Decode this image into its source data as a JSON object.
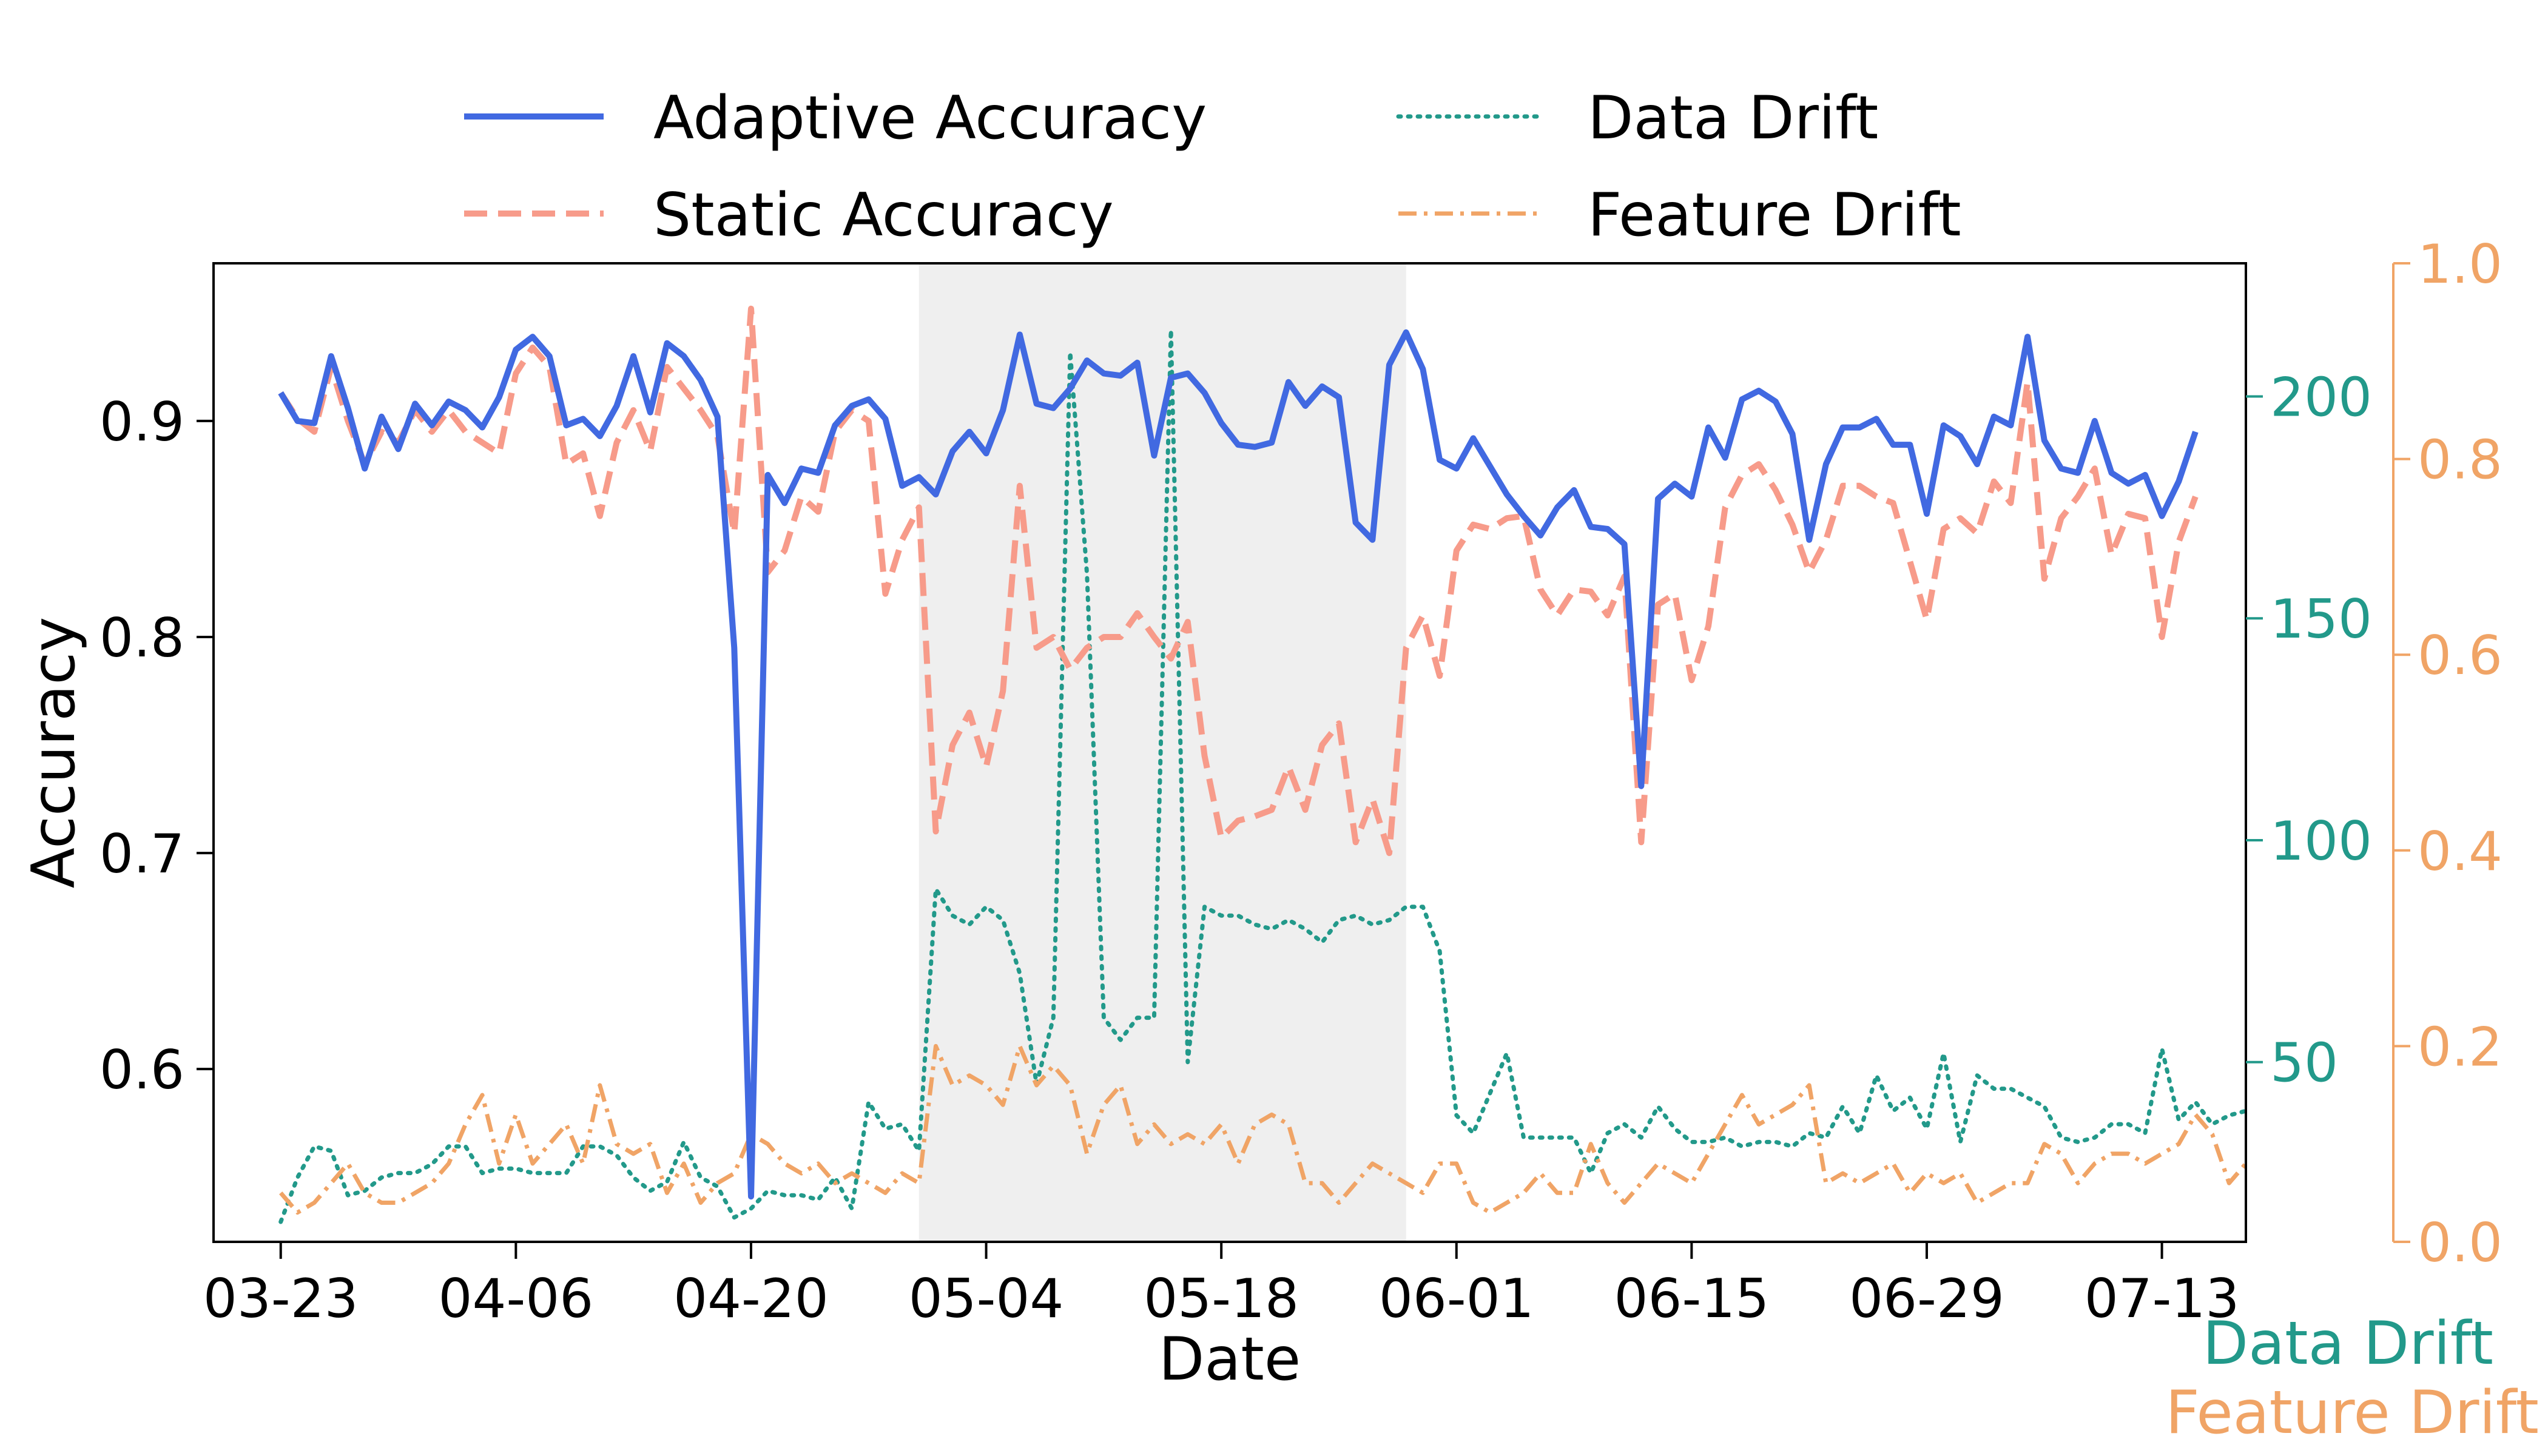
{
  "chart_data": {
    "type": "line",
    "title": "",
    "xlabel": "Date",
    "ylabel": "Accuracy",
    "y2label": "Data Drift",
    "y3label": "Feature Drift",
    "x_start": "03-23",
    "x_tick_labels": [
      "03-23",
      "04-06",
      "04-20",
      "05-04",
      "05-18",
      "06-01",
      "06-15",
      "06-29",
      "07-13"
    ],
    "ylim": [
      0.52,
      0.973
    ],
    "y_ticks": [
      0.6,
      0.7,
      0.8,
      0.9
    ],
    "y2lim": [
      9.5,
      230
    ],
    "y2_ticks": [
      50,
      100,
      150,
      200
    ],
    "y3lim": [
      0.0,
      1.0
    ],
    "y3_ticks": [
      0.0,
      0.2,
      0.4,
      0.6,
      0.8,
      1.0
    ],
    "y3_tick_labels": [
      "0.0",
      "0.2",
      "0.4",
      "0.6",
      "0.8",
      "1.0"
    ],
    "shaded_region": {
      "from": "04-30",
      "to": "05-29"
    },
    "grid": false,
    "legend": {
      "placement": "top",
      "columns": 2
    },
    "colors": {
      "adaptive": "#4169e1",
      "static": "#f79b8a",
      "data_drift": "#22998a",
      "feature_drift": "#f0a466",
      "shade": "#efefef"
    },
    "series": [
      {
        "name": "Adaptive Accuracy",
        "axis": "left",
        "values": [
          0.913,
          0.9,
          0.899,
          0.93,
          0.906,
          0.878,
          0.902,
          0.887,
          0.908,
          0.898,
          0.909,
          0.905,
          0.897,
          0.911,
          0.933,
          0.939,
          0.93,
          0.898,
          0.901,
          0.893,
          0.907,
          0.93,
          0.904,
          0.936,
          0.93,
          0.919,
          0.902,
          0.795,
          0.541,
          0.875,
          0.862,
          0.878,
          0.876,
          0.898,
          0.907,
          0.91,
          0.901,
          0.87,
          0.874,
          0.866,
          0.886,
          0.895,
          0.885,
          0.905,
          0.94,
          0.908,
          0.906,
          0.915,
          0.928,
          0.922,
          0.921,
          0.927,
          0.884,
          0.92,
          0.922,
          0.913,
          0.899,
          0.889,
          0.888,
          0.89,
          0.918,
          0.907,
          0.916,
          0.911,
          0.853,
          0.845,
          0.926,
          0.941,
          0.924,
          0.882,
          0.878,
          0.892,
          0.879,
          0.866,
          0.856,
          0.847,
          0.86,
          0.868,
          0.851,
          0.85,
          0.843,
          0.731,
          0.864,
          0.871,
          0.865,
          0.897,
          0.883,
          0.91,
          0.914,
          0.909,
          0.894,
          0.845,
          0.88,
          0.897,
          0.897,
          0.901,
          0.889,
          0.889,
          0.857,
          0.898,
          0.893,
          0.88,
          0.902,
          0.898,
          0.939,
          0.891,
          0.878,
          0.876,
          0.9,
          0.876,
          0.871,
          0.875,
          0.856,
          0.872,
          0.895
        ]
      },
      {
        "name": "Static Accuracy",
        "axis": "left",
        "values": [
          0.913,
          0.901,
          0.895,
          0.925,
          0.9,
          0.88,
          0.895,
          0.89,
          0.905,
          0.895,
          0.905,
          0.895,
          0.89,
          0.885,
          0.922,
          0.934,
          0.925,
          0.88,
          0.885,
          0.856,
          0.89,
          0.905,
          0.886,
          0.925,
          0.915,
          0.905,
          0.893,
          0.848,
          0.952,
          0.83,
          0.84,
          0.865,
          0.858,
          0.895,
          0.905,
          0.9,
          0.82,
          0.845,
          0.86,
          0.71,
          0.75,
          0.765,
          0.74,
          0.775,
          0.87,
          0.795,
          0.8,
          0.785,
          0.795,
          0.8,
          0.8,
          0.811,
          0.8,
          0.79,
          0.807,
          0.745,
          0.707,
          0.715,
          0.717,
          0.72,
          0.74,
          0.72,
          0.75,
          0.76,
          0.705,
          0.725,
          0.7,
          0.795,
          0.81,
          0.782,
          0.84,
          0.852,
          0.85,
          0.855,
          0.856,
          0.822,
          0.81,
          0.822,
          0.821,
          0.81,
          0.828,
          0.705,
          0.815,
          0.82,
          0.78,
          0.805,
          0.86,
          0.875,
          0.88,
          0.868,
          0.852,
          0.83,
          0.845,
          0.87,
          0.87,
          0.865,
          0.862,
          0.835,
          0.808,
          0.85,
          0.855,
          0.848,
          0.872,
          0.862,
          0.918,
          0.827,
          0.855,
          0.865,
          0.878,
          0.838,
          0.857,
          0.855,
          0.8,
          0.844,
          0.865
        ]
      },
      {
        "name": "Data Drift",
        "axis": "right",
        "values": [
          14,
          24,
          31,
          30,
          20,
          21,
          24,
          25,
          25,
          27,
          31,
          31,
          25,
          26,
          26,
          25,
          25,
          25,
          31,
          31,
          29,
          24,
          21,
          23,
          32,
          24,
          22,
          15,
          17,
          21,
          20,
          20,
          19,
          24,
          17,
          41,
          35,
          36,
          30,
          89,
          83,
          81,
          85,
          82,
          70,
          45,
          60,
          210,
          160,
          60,
          55,
          60,
          60,
          215,
          50,
          85,
          83,
          83,
          81,
          80,
          82,
          80,
          77,
          82,
          83,
          81,
          82,
          85,
          85,
          75,
          38,
          34,
          43,
          52,
          33,
          33,
          33,
          33,
          25,
          34,
          36,
          33,
          40,
          35,
          32,
          32,
          33,
          31,
          32,
          32,
          31,
          34,
          33,
          40,
          34,
          47,
          39,
          42,
          35,
          52,
          32,
          47,
          44,
          44,
          42,
          40,
          33,
          32,
          33,
          36,
          36,
          34,
          53,
          37,
          41,
          36,
          38,
          39
        ]
      },
      {
        "name": "Feature Drift",
        "axis": "far-right",
        "values": [
          0.05,
          0.03,
          0.04,
          0.06,
          0.08,
          0.05,
          0.04,
          0.04,
          0.05,
          0.06,
          0.08,
          0.12,
          0.15,
          0.08,
          0.13,
          0.08,
          0.1,
          0.12,
          0.08,
          0.16,
          0.1,
          0.09,
          0.1,
          0.05,
          0.08,
          0.04,
          0.06,
          0.07,
          0.11,
          0.1,
          0.08,
          0.07,
          0.08,
          0.06,
          0.07,
          0.06,
          0.05,
          0.07,
          0.06,
          0.2,
          0.16,
          0.17,
          0.16,
          0.14,
          0.2,
          0.16,
          0.18,
          0.16,
          0.09,
          0.14,
          0.16,
          0.1,
          0.12,
          0.1,
          0.11,
          0.1,
          0.12,
          0.08,
          0.12,
          0.13,
          0.12,
          0.06,
          0.06,
          0.04,
          0.06,
          0.08,
          0.07,
          0.06,
          0.05,
          0.08,
          0.08,
          0.04,
          0.03,
          0.04,
          0.05,
          0.07,
          0.05,
          0.05,
          0.1,
          0.06,
          0.04,
          0.06,
          0.08,
          0.07,
          0.06,
          0.09,
          0.12,
          0.15,
          0.12,
          0.13,
          0.14,
          0.16,
          0.06,
          0.07,
          0.06,
          0.07,
          0.08,
          0.05,
          0.07,
          0.06,
          0.07,
          0.04,
          0.05,
          0.06,
          0.06,
          0.1,
          0.09,
          0.06,
          0.08,
          0.09,
          0.09,
          0.08,
          0.09,
          0.1,
          0.13,
          0.11,
          0.06,
          0.08
        ]
      }
    ]
  }
}
